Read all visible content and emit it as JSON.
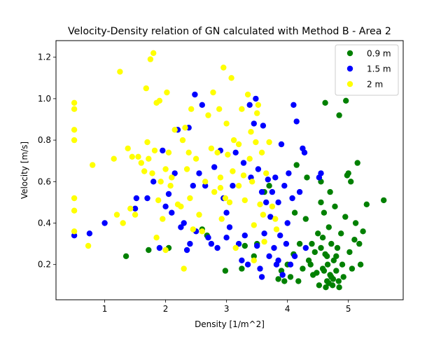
{
  "chart_data": {
    "type": "scatter",
    "title": "Velocity-Density relation of GN calculated with Method B - Area 2",
    "xlabel": "Density [1/m^2]",
    "ylabel": "Velocity [m/s]",
    "xlim": [
      0.2,
      5.9
    ],
    "ylim": [
      0.03,
      1.28
    ],
    "xticks": [
      1,
      2,
      3,
      4,
      5
    ],
    "yticks": [
      0.2,
      0.4,
      0.6,
      0.8,
      1.0,
      1.2
    ],
    "xtick_labels": [
      "1",
      "2",
      "3",
      "4",
      "5"
    ],
    "ytick_labels": [
      "0.2",
      "0.4",
      "0.6",
      "0.8",
      "1.0",
      "1.2"
    ],
    "grid": false,
    "legend_position": "upper right",
    "series": [
      {
        "name": "0.9 m",
        "color": "#008000",
        "points": [
          [
            1.35,
            0.24
          ],
          [
            1.72,
            0.27
          ],
          [
            2.05,
            0.28
          ],
          [
            2.6,
            0.37
          ],
          [
            2.68,
            0.34
          ],
          [
            2.98,
            0.17
          ],
          [
            3.25,
            0.18
          ],
          [
            3.3,
            0.29
          ],
          [
            3.45,
            0.24
          ],
          [
            3.5,
            0.3
          ],
          [
            3.62,
            0.55
          ],
          [
            3.7,
            0.58
          ],
          [
            3.85,
            0.13
          ],
          [
            3.9,
            0.17
          ],
          [
            3.95,
            0.12
          ],
          [
            4.0,
            0.2
          ],
          [
            4.05,
            0.14
          ],
          [
            4.1,
            0.25
          ],
          [
            4.12,
            0.45
          ],
          [
            4.15,
            0.68
          ],
          [
            4.18,
            0.12
          ],
          [
            4.2,
            0.3
          ],
          [
            4.25,
            0.18
          ],
          [
            4.3,
            0.42
          ],
          [
            4.32,
            0.62
          ],
          [
            4.35,
            0.22
          ],
          [
            4.38,
            0.2
          ],
          [
            4.4,
            0.3
          ],
          [
            4.42,
            0.15
          ],
          [
            4.45,
            0.26
          ],
          [
            4.48,
            0.16
          ],
          [
            4.5,
            0.35
          ],
          [
            4.52,
            0.1
          ],
          [
            4.55,
            0.28
          ],
          [
            4.55,
            0.6
          ],
          [
            4.58,
            0.18
          ],
          [
            4.6,
            0.45
          ],
          [
            4.62,
            0.25
          ],
          [
            4.62,
            0.98
          ],
          [
            4.65,
            0.12
          ],
          [
            4.66,
            0.2
          ],
          [
            4.68,
            0.38
          ],
          [
            4.7,
            0.15
          ],
          [
            4.72,
            0.3
          ],
          [
            4.74,
            0.1
          ],
          [
            4.76,
            0.22
          ],
          [
            4.78,
            0.48
          ],
          [
            4.8,
            0.17
          ],
          [
            4.82,
            0.28
          ],
          [
            4.84,
            0.12
          ],
          [
            4.85,
            0.92
          ],
          [
            4.88,
            0.35
          ],
          [
            4.9,
            0.2
          ],
          [
            4.92,
            0.14
          ],
          [
            4.95,
            0.43
          ],
          [
            4.96,
            0.99
          ],
          [
            4.98,
            0.63
          ],
          [
            5.0,
            0.64
          ],
          [
            5.02,
            0.26
          ],
          [
            5.04,
            0.6
          ],
          [
            5.06,
            0.18
          ],
          [
            5.1,
            0.32
          ],
          [
            5.12,
            0.4
          ],
          [
            5.15,
            0.69
          ],
          [
            5.18,
            0.3
          ],
          [
            5.2,
            0.2
          ],
          [
            5.24,
            0.36
          ],
          [
            5.3,
            0.49
          ],
          [
            5.58,
            0.51
          ],
          [
            4.7,
            0.55
          ],
          [
            4.55,
            0.5
          ],
          [
            4.75,
            0.13
          ],
          [
            4.63,
            0.09
          ],
          [
            4.68,
            0.11
          ],
          [
            4.72,
            0.14
          ],
          [
            4.6,
            0.17
          ],
          [
            4.65,
            0.24
          ],
          [
            4.85,
            0.09
          ],
          [
            4.8,
            0.24
          ],
          [
            4.58,
            0.33
          ]
        ]
      },
      {
        "name": "1.5 m",
        "color": "#0000ff",
        "points": [
          [
            0.5,
            0.34
          ],
          [
            0.75,
            0.35
          ],
          [
            1.0,
            0.4
          ],
          [
            1.5,
            0.47
          ],
          [
            1.52,
            0.52
          ],
          [
            1.7,
            0.52
          ],
          [
            1.8,
            0.6
          ],
          [
            1.9,
            0.28
          ],
          [
            1.95,
            0.75
          ],
          [
            2.0,
            0.48
          ],
          [
            2.05,
            0.54
          ],
          [
            2.1,
            0.45
          ],
          [
            2.15,
            0.64
          ],
          [
            2.2,
            0.85
          ],
          [
            2.25,
            0.38
          ],
          [
            2.3,
            0.4
          ],
          [
            2.35,
            0.27
          ],
          [
            2.38,
            0.86
          ],
          [
            2.4,
            0.3
          ],
          [
            2.45,
            0.58
          ],
          [
            2.48,
            1.02
          ],
          [
            2.5,
            0.36
          ],
          [
            2.55,
            0.64
          ],
          [
            2.6,
            0.97
          ],
          [
            2.65,
            0.58
          ],
          [
            2.7,
            0.33
          ],
          [
            2.75,
            0.3
          ],
          [
            2.8,
            0.67
          ],
          [
            2.85,
            0.28
          ],
          [
            2.9,
            0.75
          ],
          [
            2.95,
            0.52
          ],
          [
            3.0,
            0.45
          ],
          [
            3.05,
            0.38
          ],
          [
            3.1,
            0.58
          ],
          [
            3.15,
            0.74
          ],
          [
            3.2,
            0.3
          ],
          [
            3.25,
            0.22
          ],
          [
            3.28,
            0.69
          ],
          [
            3.3,
            0.34
          ],
          [
            3.35,
            0.2
          ],
          [
            3.38,
            0.97
          ],
          [
            3.4,
            0.62
          ],
          [
            3.45,
            0.88
          ],
          [
            3.48,
            1.0
          ],
          [
            3.5,
            0.29
          ],
          [
            3.52,
            0.66
          ],
          [
            3.55,
            0.18
          ],
          [
            3.58,
            0.55
          ],
          [
            3.6,
            0.87
          ],
          [
            3.62,
            0.35
          ],
          [
            3.65,
            0.5
          ],
          [
            3.68,
            0.61
          ],
          [
            3.7,
            0.24
          ],
          [
            3.72,
            0.43
          ],
          [
            3.75,
            0.55
          ],
          [
            3.78,
            0.28
          ],
          [
            3.8,
            0.62
          ],
          [
            3.82,
            0.2
          ],
          [
            3.85,
            0.5
          ],
          [
            3.88,
            0.34
          ],
          [
            3.9,
            0.78
          ],
          [
            3.92,
            0.15
          ],
          [
            3.95,
            0.58
          ],
          [
            3.98,
            0.3
          ],
          [
            4.0,
            0.4
          ],
          [
            4.02,
            0.64
          ],
          [
            4.05,
            0.2
          ],
          [
            4.08,
            0.52
          ],
          [
            4.1,
            0.97
          ],
          [
            4.12,
            0.24
          ],
          [
            4.15,
            0.89
          ],
          [
            4.2,
            0.55
          ],
          [
            4.25,
            0.76
          ],
          [
            4.28,
            0.74
          ],
          [
            4.3,
            0.28
          ],
          [
            4.52,
            0.62
          ],
          [
            4.55,
            0.64
          ],
          [
            3.0,
            0.33
          ],
          [
            3.58,
            0.14
          ],
          [
            3.85,
            0.22
          ]
        ]
      },
      {
        "name": "2 m",
        "color": "#ffff00",
        "points": [
          [
            0.5,
            0.98
          ],
          [
            0.5,
            0.95
          ],
          [
            0.5,
            0.85
          ],
          [
            0.5,
            0.8
          ],
          [
            0.5,
            0.52
          ],
          [
            0.5,
            0.46
          ],
          [
            0.5,
            0.36
          ],
          [
            0.73,
            0.29
          ],
          [
            0.8,
            0.68
          ],
          [
            1.15,
            0.71
          ],
          [
            1.2,
            0.44
          ],
          [
            1.25,
            1.13
          ],
          [
            1.3,
            0.4
          ],
          [
            1.38,
            0.76
          ],
          [
            1.42,
            0.47
          ],
          [
            1.45,
            0.72
          ],
          [
            1.5,
            0.44
          ],
          [
            1.55,
            0.72
          ],
          [
            1.6,
            0.69
          ],
          [
            1.65,
            0.65
          ],
          [
            1.68,
            1.05
          ],
          [
            1.7,
            0.79
          ],
          [
            1.72,
            0.71
          ],
          [
            1.75,
            1.19
          ],
          [
            1.78,
            0.64
          ],
          [
            1.8,
            1.22
          ],
          [
            1.82,
            0.75
          ],
          [
            1.85,
            0.98
          ],
          [
            1.88,
            0.51
          ],
          [
            1.9,
            0.99
          ],
          [
            1.92,
            0.6
          ],
          [
            1.95,
            0.42
          ],
          [
            2.0,
            0.66
          ],
          [
            2.02,
            1.03
          ],
          [
            2.05,
            0.74
          ],
          [
            2.08,
            0.58
          ],
          [
            2.1,
            0.62
          ],
          [
            2.15,
            0.85
          ],
          [
            2.2,
            0.49
          ],
          [
            2.25,
            0.48
          ],
          [
            2.28,
            0.8
          ],
          [
            2.3,
            0.18
          ],
          [
            2.32,
            0.86
          ],
          [
            2.35,
            0.66
          ],
          [
            2.38,
            0.74
          ],
          [
            2.4,
            0.52
          ],
          [
            2.42,
            0.95
          ],
          [
            2.45,
            0.37
          ],
          [
            2.5,
            0.71
          ],
          [
            2.55,
            0.44
          ],
          [
            2.6,
            0.36
          ],
          [
            2.65,
            0.6
          ],
          [
            2.7,
            0.92
          ],
          [
            2.75,
            0.76
          ],
          [
            2.78,
            1.03
          ],
          [
            2.8,
            0.55
          ],
          [
            2.85,
            0.74
          ],
          [
            2.88,
            0.95
          ],
          [
            2.9,
            0.62
          ],
          [
            2.92,
            0.42
          ],
          [
            2.95,
            1.15
          ],
          [
            2.98,
            0.52
          ],
          [
            3.0,
            0.88
          ],
          [
            3.02,
            0.73
          ],
          [
            3.05,
            0.5
          ],
          [
            3.08,
            1.1
          ],
          [
            3.1,
            0.65
          ],
          [
            3.12,
            0.8
          ],
          [
            3.15,
            0.28
          ],
          [
            3.2,
            0.78
          ],
          [
            3.25,
            0.95
          ],
          [
            3.28,
            0.63
          ],
          [
            3.3,
            0.51
          ],
          [
            3.35,
            1.02
          ],
          [
            3.38,
            0.71
          ],
          [
            3.4,
            0.84
          ],
          [
            3.42,
            0.6
          ],
          [
            3.45,
            0.39
          ],
          [
            3.48,
            0.79
          ],
          [
            3.5,
            0.93
          ],
          [
            3.52,
            0.97
          ],
          [
            3.55,
            0.49
          ],
          [
            3.58,
            0.74
          ],
          [
            3.6,
            0.44
          ],
          [
            3.62,
            0.31
          ],
          [
            3.65,
            0.64
          ],
          [
            3.7,
            0.79
          ],
          [
            3.75,
            0.48
          ],
          [
            3.8,
            0.42
          ],
          [
            3.82,
            0.37
          ],
          [
            1.85,
            0.33
          ],
          [
            2.0,
            0.27
          ],
          [
            3.2,
            0.58
          ],
          [
            3.45,
            0.22
          ],
          [
            2.9,
            0.57
          ]
        ]
      }
    ]
  }
}
